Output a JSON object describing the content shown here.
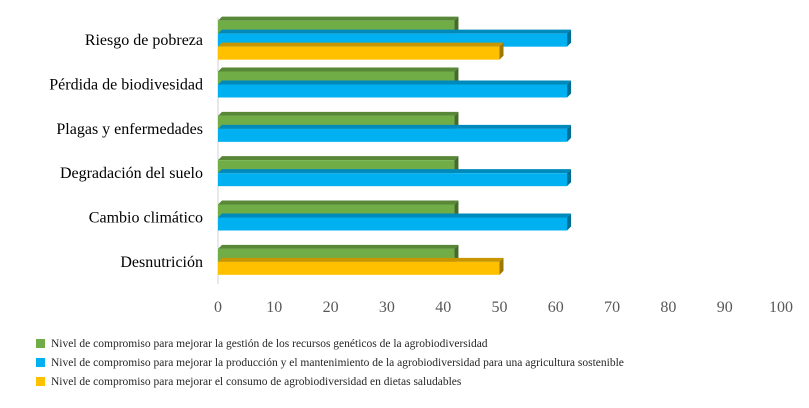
{
  "chart_data": {
    "type": "bar",
    "orientation": "horizontal",
    "style": "3d",
    "categories": [
      "Riesgo de pobreza",
      "Pérdida de biodivesidad",
      "Plagas y enfermedades",
      "Degradación del suelo",
      "Cambio climático",
      "Desnutrición"
    ],
    "series": [
      {
        "name": "Nivel de compromiso para mejorar la gestión de los recursos genéticos de la agrobiodiversidad",
        "color": "#70ad47",
        "values": [
          42,
          42,
          42,
          42,
          42,
          42
        ]
      },
      {
        "name": "Nivel de compromiso para mejorar la producción y el mantenimiento de la agrobiodiversidad para una agricultura sostenible",
        "color": "#00b0f0",
        "values": [
          62,
          62,
          62,
          62,
          62,
          null
        ]
      },
      {
        "name": "Nivel de compromiso para mejorar el consumo de agrobiodiversidad  en dietas saludables",
        "color": "#ffc000",
        "values": [
          50,
          null,
          null,
          null,
          null,
          50
        ]
      }
    ],
    "xlim": [
      0,
      100
    ],
    "xticks": [
      "0",
      "10",
      "20",
      "30",
      "40",
      "50",
      "60",
      "70",
      "80",
      "90",
      "100"
    ],
    "grid": false,
    "legend_position": "bottom"
  }
}
